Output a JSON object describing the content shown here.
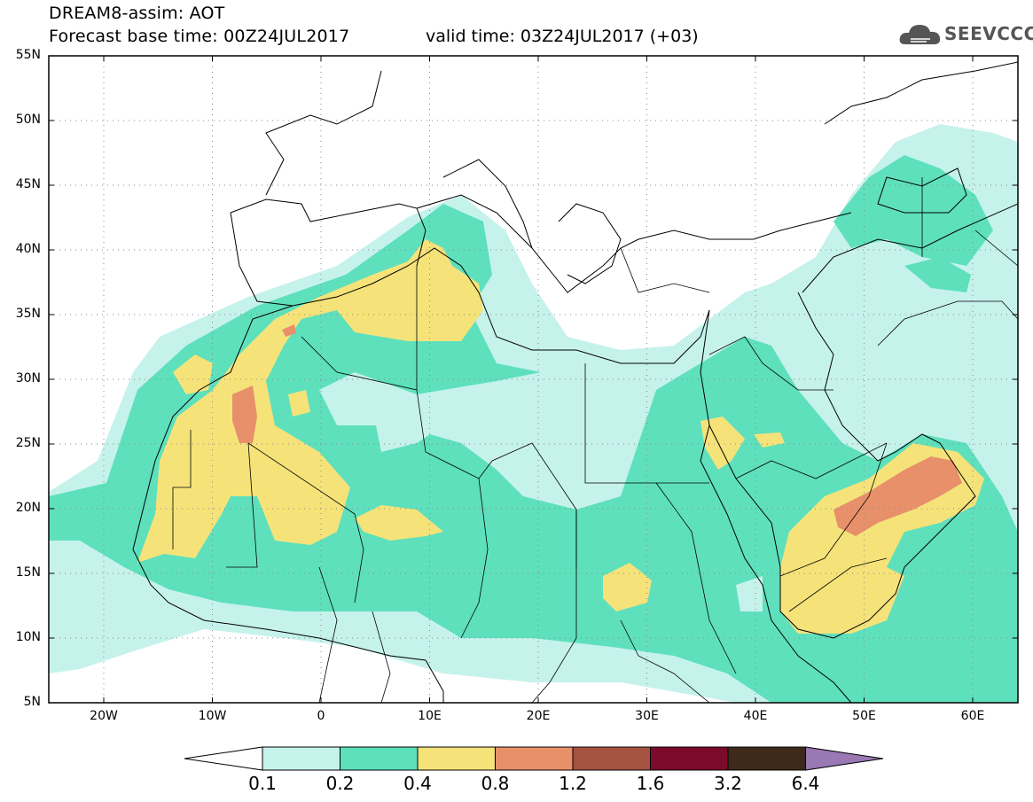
{
  "header": {
    "title": "DREAM8-assim: AOT",
    "forecast": "Forecast base time: 00Z24JUL2017",
    "valid": "valid time: 03Z24JUL2017 (+03)"
  },
  "logo": {
    "text": "SEEVCCC",
    "icon": "cloud-icon",
    "color": "#555555"
  },
  "map": {
    "lat_labels": [
      "55N",
      "50N",
      "45N",
      "40N",
      "35N",
      "30N",
      "25N",
      "20N",
      "15N",
      "10N",
      "5N"
    ],
    "lon_labels": [
      "20W",
      "10W",
      "0",
      "10E",
      "20E",
      "30E",
      "40E",
      "50E",
      "60E"
    ]
  },
  "colorbar": {
    "labels": [
      "0.1",
      "0.2",
      "0.4",
      "0.8",
      "1.2",
      "1.6",
      "3.2",
      "6.4"
    ],
    "colors": [
      "#ffffff",
      "#c6f2ec",
      "#5ee0bd",
      "#f5e37a",
      "#e8906a",
      "#a65242",
      "#7c0a2a",
      "#3e2a1a",
      "#9a78b4"
    ]
  },
  "field_colors": {
    "level1": "#c6f2ec",
    "level2": "#5ee0bd",
    "level3": "#f5e37a",
    "level4": "#e8906a"
  }
}
